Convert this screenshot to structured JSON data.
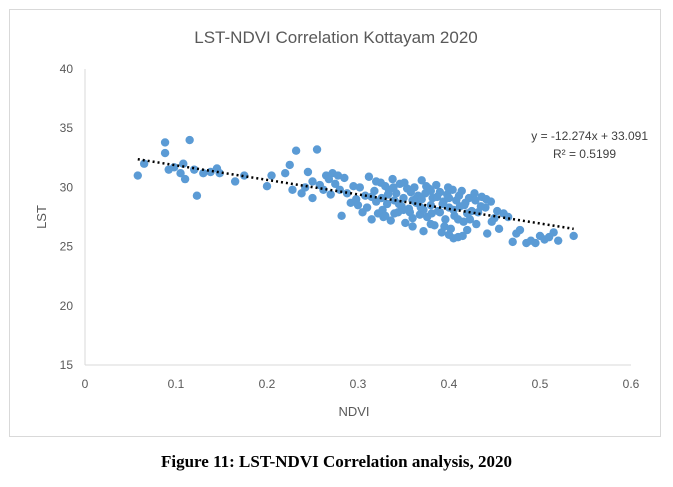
{
  "caption": "Figure 11: LST-NDVI Correlation analysis, 2020",
  "chart_data": {
    "type": "scatter",
    "title": "LST-NDVI Correlation Kottayam 2020",
    "xlabel": "NDVI",
    "ylabel": "LST",
    "xlim": [
      0,
      0.6
    ],
    "ylim": [
      15,
      40
    ],
    "x_ticks": [
      "0",
      "0.1",
      "0.2",
      "0.3",
      "0.4",
      "0.5",
      "0.6"
    ],
    "y_ticks": [
      "15",
      "20",
      "25",
      "30",
      "35",
      "40"
    ],
    "grid": false,
    "legend": "none",
    "marker_color": "#5b9bd5",
    "trendline": {
      "type": "linear",
      "slope": -12.274,
      "intercept": 33.091,
      "equation": "y = -12.274x + 33.091",
      "r2_label": "R² = 0.5199",
      "style": "dotted",
      "color": "#000000",
      "x_range": [
        0.058,
        0.537
      ]
    },
    "points": [
      [
        0.058,
        31.0
      ],
      [
        0.065,
        32.0
      ],
      [
        0.088,
        33.8
      ],
      [
        0.088,
        32.9
      ],
      [
        0.092,
        31.5
      ],
      [
        0.098,
        31.7
      ],
      [
        0.105,
        31.2
      ],
      [
        0.108,
        32.0
      ],
      [
        0.11,
        30.7
      ],
      [
        0.115,
        34.0
      ],
      [
        0.12,
        31.5
      ],
      [
        0.123,
        29.3
      ],
      [
        0.13,
        31.2
      ],
      [
        0.138,
        31.3
      ],
      [
        0.145,
        31.6
      ],
      [
        0.148,
        31.2
      ],
      [
        0.165,
        30.5
      ],
      [
        0.175,
        31.0
      ],
      [
        0.2,
        30.1
      ],
      [
        0.205,
        31.0
      ],
      [
        0.22,
        31.2
      ],
      [
        0.225,
        31.9
      ],
      [
        0.228,
        29.8
      ],
      [
        0.232,
        33.1
      ],
      [
        0.238,
        29.5
      ],
      [
        0.242,
        30.0
      ],
      [
        0.245,
        31.3
      ],
      [
        0.25,
        30.5
      ],
      [
        0.25,
        29.1
      ],
      [
        0.255,
        33.2
      ],
      [
        0.258,
        30.2
      ],
      [
        0.262,
        29.8
      ],
      [
        0.265,
        31.0
      ],
      [
        0.268,
        30.7
      ],
      [
        0.27,
        29.4
      ],
      [
        0.272,
        31.2
      ],
      [
        0.275,
        30.3
      ],
      [
        0.278,
        31.0
      ],
      [
        0.28,
        29.8
      ],
      [
        0.282,
        27.6
      ],
      [
        0.285,
        30.8
      ],
      [
        0.288,
        29.5
      ],
      [
        0.292,
        28.7
      ],
      [
        0.295,
        30.1
      ],
      [
        0.298,
        29.0
      ],
      [
        0.3,
        28.5
      ],
      [
        0.302,
        30.0
      ],
      [
        0.305,
        27.9
      ],
      [
        0.308,
        29.3
      ],
      [
        0.31,
        28.3
      ],
      [
        0.312,
        30.9
      ],
      [
        0.315,
        27.3
      ],
      [
        0.318,
        29.7
      ],
      [
        0.32,
        28.8
      ],
      [
        0.322,
        27.8
      ],
      [
        0.325,
        30.4
      ],
      [
        0.326,
        29.1
      ],
      [
        0.328,
        27.5
      ],
      [
        0.33,
        30.1
      ],
      [
        0.332,
        28.6
      ],
      [
        0.334,
        29.8
      ],
      [
        0.336,
        27.2
      ],
      [
        0.338,
        30.7
      ],
      [
        0.34,
        28.9
      ],
      [
        0.342,
        29.5
      ],
      [
        0.344,
        27.9
      ],
      [
        0.346,
        30.3
      ],
      [
        0.348,
        28.4
      ],
      [
        0.35,
        29.1
      ],
      [
        0.352,
        27.0
      ],
      [
        0.354,
        29.9
      ],
      [
        0.356,
        28.2
      ],
      [
        0.358,
        29.6
      ],
      [
        0.36,
        27.4
      ],
      [
        0.362,
        30.0
      ],
      [
        0.364,
        28.7
      ],
      [
        0.366,
        29.3
      ],
      [
        0.368,
        27.7
      ],
      [
        0.37,
        30.6
      ],
      [
        0.372,
        28.1
      ],
      [
        0.374,
        29.5
      ],
      [
        0.376,
        27.5
      ],
      [
        0.378,
        29.9
      ],
      [
        0.38,
        28.5
      ],
      [
        0.382,
        29.1
      ],
      [
        0.384,
        26.8
      ],
      [
        0.386,
        30.2
      ],
      [
        0.388,
        28.0
      ],
      [
        0.39,
        29.6
      ],
      [
        0.392,
        26.2
      ],
      [
        0.394,
        28.8
      ],
      [
        0.396,
        27.3
      ],
      [
        0.398,
        29.4
      ],
      [
        0.4,
        28.3
      ],
      [
        0.402,
        26.5
      ],
      [
        0.404,
        29.8
      ],
      [
        0.406,
        27.6
      ],
      [
        0.408,
        28.9
      ],
      [
        0.41,
        25.8
      ],
      [
        0.412,
        28.4
      ],
      [
        0.414,
        29.7
      ],
      [
        0.416,
        27.1
      ],
      [
        0.418,
        28.7
      ],
      [
        0.42,
        26.4
      ],
      [
        0.422,
        29.1
      ],
      [
        0.425,
        28.0
      ],
      [
        0.428,
        29.5
      ],
      [
        0.432,
        27.9
      ],
      [
        0.436,
        29.2
      ],
      [
        0.44,
        28.3
      ],
      [
        0.442,
        26.1
      ],
      [
        0.446,
        28.8
      ],
      [
        0.45,
        27.4
      ],
      [
        0.455,
        26.5
      ],
      [
        0.46,
        27.8
      ],
      [
        0.465,
        27.5
      ],
      [
        0.47,
        25.4
      ],
      [
        0.474,
        26.1
      ],
      [
        0.478,
        26.4
      ],
      [
        0.485,
        25.3
      ],
      [
        0.49,
        25.5
      ],
      [
        0.495,
        25.3
      ],
      [
        0.5,
        25.9
      ],
      [
        0.505,
        25.6
      ],
      [
        0.51,
        25.8
      ],
      [
        0.515,
        26.2
      ],
      [
        0.52,
        25.5
      ],
      [
        0.537,
        25.9
      ],
      [
        0.315,
        29.2
      ],
      [
        0.32,
        30.5
      ],
      [
        0.327,
        28.1
      ],
      [
        0.333,
        29.4
      ],
      [
        0.339,
        30.0
      ],
      [
        0.345,
        28.6
      ],
      [
        0.351,
        30.4
      ],
      [
        0.357,
        27.9
      ],
      [
        0.363,
        29.0
      ],
      [
        0.369,
        28.3
      ],
      [
        0.375,
        30.1
      ],
      [
        0.381,
        27.8
      ],
      [
        0.387,
        29.2
      ],
      [
        0.393,
        28.6
      ],
      [
        0.399,
        30.0
      ],
      [
        0.405,
        28.1
      ],
      [
        0.411,
        29.3
      ],
      [
        0.417,
        28.5
      ],
      [
        0.423,
        27.3
      ],
      [
        0.429,
        28.9
      ],
      [
        0.435,
        28.4
      ],
      [
        0.441,
        29.0
      ],
      [
        0.447,
        27.1
      ],
      [
        0.453,
        28.0
      ],
      [
        0.33,
        27.6
      ],
      [
        0.34,
        27.8
      ],
      [
        0.35,
        28.1
      ],
      [
        0.36,
        28.9
      ],
      [
        0.37,
        29.0
      ],
      [
        0.38,
        29.7
      ],
      [
        0.39,
        27.9
      ],
      [
        0.4,
        29.1
      ],
      [
        0.41,
        27.3
      ],
      [
        0.42,
        27.8
      ],
      [
        0.43,
        26.9
      ],
      [
        0.36,
        26.7
      ],
      [
        0.38,
        26.9
      ],
      [
        0.4,
        26.0
      ],
      [
        0.415,
        25.9
      ],
      [
        0.372,
        26.3
      ],
      [
        0.395,
        26.7
      ],
      [
        0.405,
        25.7
      ]
    ]
  }
}
